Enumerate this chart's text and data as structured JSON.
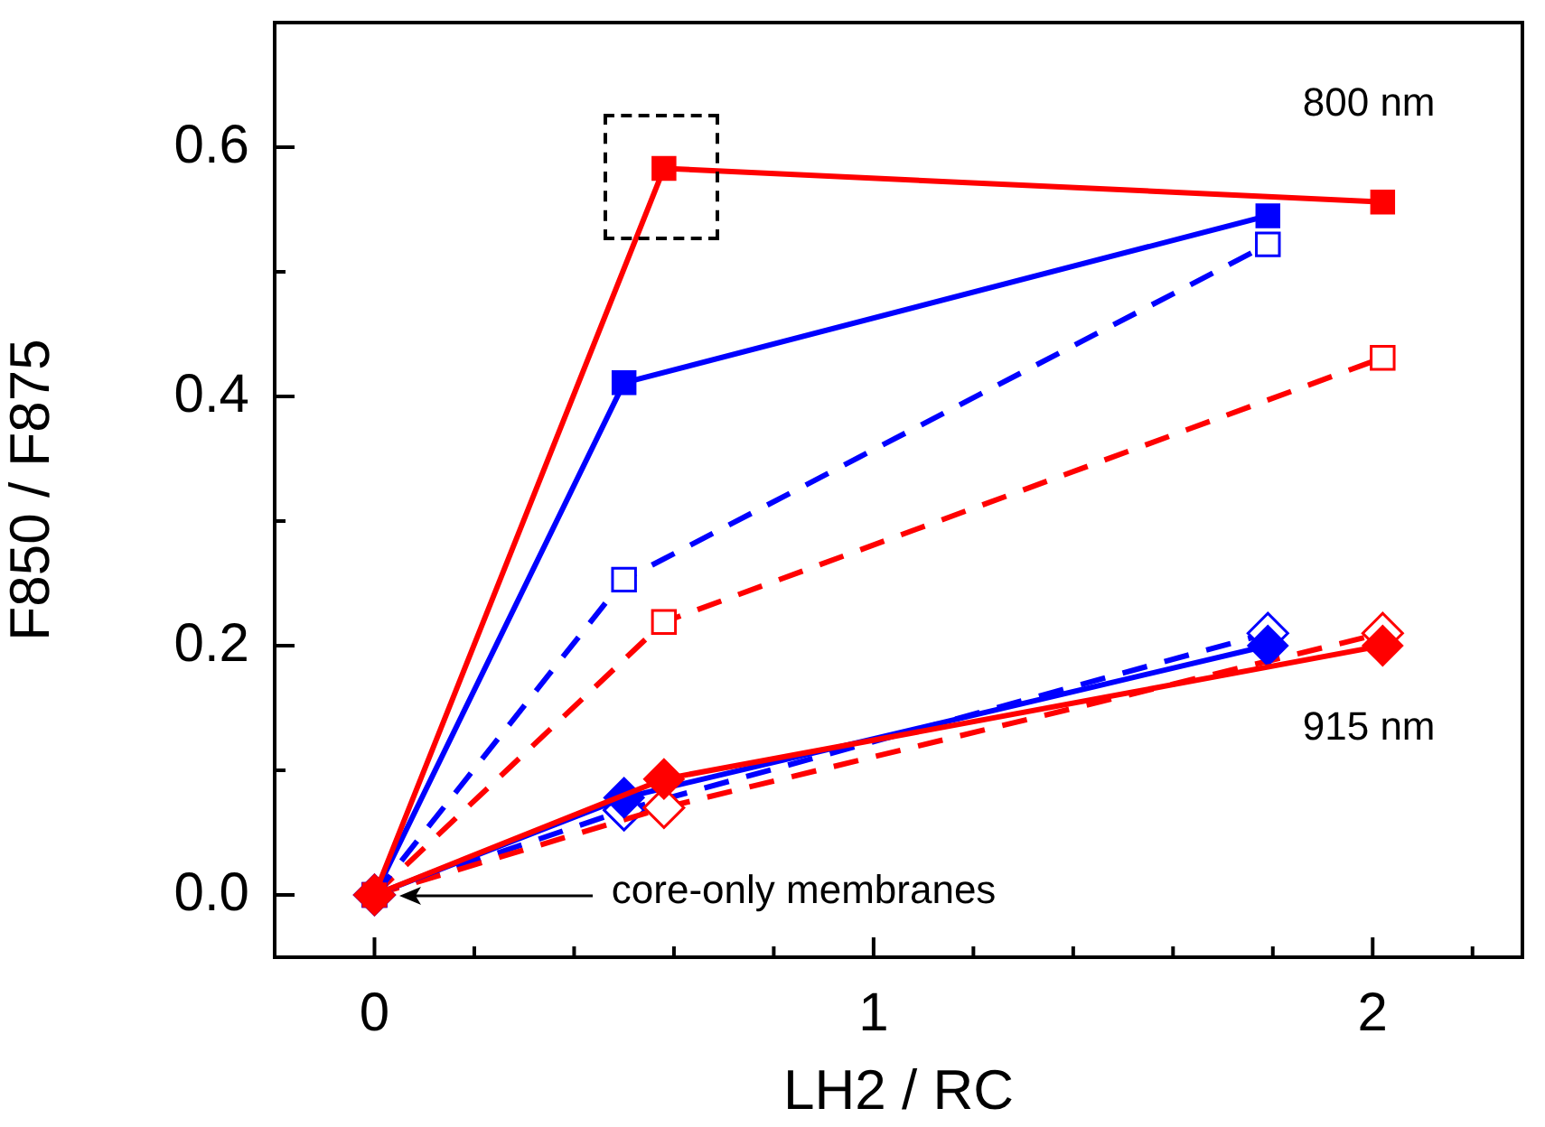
{
  "chart_data": {
    "type": "line",
    "xlabel": "LH2 / RC",
    "ylabel": "F850 / F875",
    "xlim": [
      -0.2,
      2.3
    ],
    "xticks": [
      0,
      {
        "value": 0.2,
        "label": null
      },
      {
        "value": 0.4,
        "label": null
      },
      {
        "value": 0.6,
        "label": null
      },
      {
        "value": 0.8,
        "label": null
      },
      1,
      {
        "value": 1.2,
        "label": null
      },
      {
        "value": 1.4,
        "label": null
      },
      {
        "value": 1.6,
        "label": null
      },
      {
        "value": 1.8,
        "label": null
      },
      2,
      {
        "value": 2.2,
        "label": null
      }
    ],
    "ylim": [
      -0.05,
      0.7
    ],
    "yticks": [
      {
        "value": 0,
        "label": "0.0"
      },
      {
        "value": 0.1,
        "label": null
      },
      0.2,
      {
        "value": 0.3,
        "label": null
      },
      0.4,
      {
        "value": 0.5,
        "label": null
      },
      0.6
    ],
    "grid": false,
    "legend": false,
    "series": [
      {
        "color": "#ff0000",
        "marker": "square",
        "line_style": "solid",
        "x": [
          0,
          0.58,
          2.02
        ],
        "values": [
          0,
          0.583,
          0.556
        ]
      },
      {
        "color": "#ff0000",
        "marker": "diamond",
        "line_style": "solid",
        "x": [
          0,
          0.58,
          2.02
        ],
        "values": [
          0,
          0.093,
          0.2
        ]
      },
      {
        "color": "#0000ff",
        "marker": "diamond",
        "line_style": "solid",
        "x": [
          0,
          0.5,
          1.79
        ],
        "values": [
          0,
          0.078,
          0.2
        ]
      },
      {
        "color": "#0000ff",
        "marker": "square",
        "line_style": "solid",
        "x": [
          0,
          0.5,
          1.79
        ],
        "values": [
          0,
          0.411,
          0.545
        ]
      },
      {
        "color": "#0000ff",
        "marker": "square",
        "line_style": "dashed",
        "x": [
          0,
          0.5,
          1.79
        ],
        "values": [
          0,
          0.253,
          0.522
        ]
      },
      {
        "color": "#ff0000",
        "marker": "diamond",
        "line_style": "dashed",
        "x": [
          0,
          0.58,
          2.02
        ],
        "values": [
          0,
          0.07,
          0.21
        ]
      },
      {
        "color": "#0000ff",
        "marker": "diamond",
        "line_style": "dashed",
        "x": [
          0,
          0.5,
          1.79
        ],
        "values": [
          0,
          0.068,
          0.21
        ]
      },
      {
        "color": "#ff0000",
        "marker": "square",
        "line_style": "dashed",
        "x": [
          0,
          0.58,
          2.02
        ],
        "values": [
          0,
          0.219,
          0.431
        ]
      }
    ],
    "annotations": [
      "800 nm",
      "915 nm",
      "core-only membranes"
    ]
  }
}
